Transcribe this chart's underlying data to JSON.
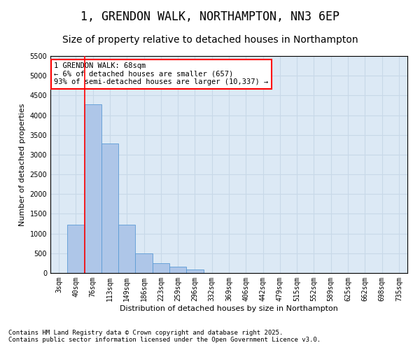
{
  "title": "1, GRENDON WALK, NORTHAMPTON, NN3 6EP",
  "subtitle": "Size of property relative to detached houses in Northampton",
  "xlabel": "Distribution of detached houses by size in Northampton",
  "ylabel": "Number of detached properties",
  "categories": [
    "3sqm",
    "40sqm",
    "76sqm",
    "113sqm",
    "149sqm",
    "186sqm",
    "223sqm",
    "259sqm",
    "296sqm",
    "332sqm",
    "369sqm",
    "406sqm",
    "442sqm",
    "479sqm",
    "515sqm",
    "552sqm",
    "589sqm",
    "625sqm",
    "662sqm",
    "698sqm",
    "735sqm"
  ],
  "values": [
    0,
    1220,
    4280,
    3280,
    1230,
    490,
    250,
    160,
    80,
    0,
    0,
    0,
    0,
    0,
    0,
    0,
    0,
    0,
    0,
    0,
    0
  ],
  "bar_color": "#aec6e8",
  "bar_edge_color": "#5b9bd5",
  "grid_color": "#c8d8e8",
  "background_color": "#dce9f5",
  "annotation_line1": "1 GRENDON WALK: 68sqm",
  "annotation_line2": "← 6% of detached houses are smaller (657)",
  "annotation_line3": "93% of semi-detached houses are larger (10,337) →",
  "annotation_box_color": "white",
  "annotation_box_edge_color": "red",
  "footer_line1": "Contains HM Land Registry data © Crown copyright and database right 2025.",
  "footer_line2": "Contains public sector information licensed under the Open Government Licence v3.0.",
  "ylim": [
    0,
    5500
  ],
  "yticks": [
    0,
    500,
    1000,
    1500,
    2000,
    2500,
    3000,
    3500,
    4000,
    4500,
    5000,
    5500
  ],
  "title_fontsize": 12,
  "subtitle_fontsize": 10,
  "axis_label_fontsize": 8,
  "tick_fontsize": 7,
  "annotation_fontsize": 7.5,
  "footer_fontsize": 6.5
}
